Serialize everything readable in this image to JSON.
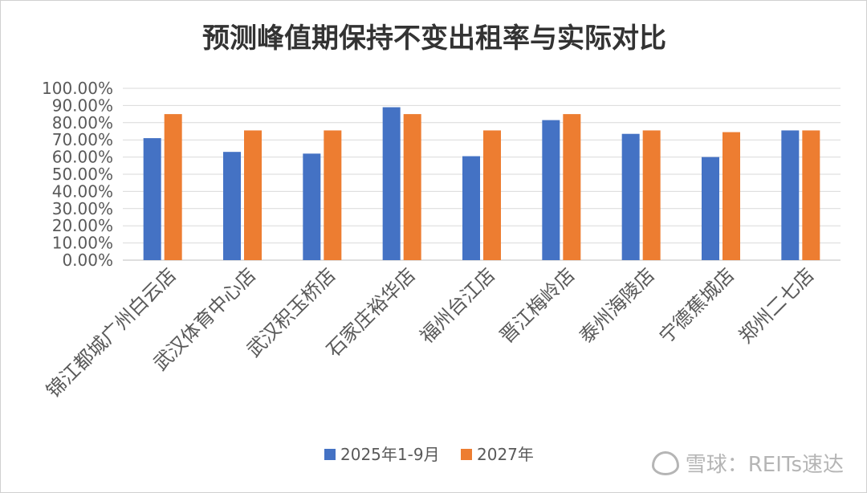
{
  "chart_data": {
    "type": "bar",
    "title": "预测峰值期保持不变出租率与实际对比",
    "categories": [
      "锦江都城广州白云店",
      "武汉体育中心店",
      "武汉积玉桥店",
      "石家庄裕华店",
      "福州台江店",
      "晋江梅岭店",
      "泰州海陵店",
      "宁德蕉城店",
      "郑州二七店"
    ],
    "series": [
      {
        "name": "2025年1-9月",
        "color": "#4472C4",
        "values": [
          71,
          63,
          62,
          89,
          60.5,
          81.5,
          73.5,
          60,
          75.5
        ]
      },
      {
        "name": "2027年",
        "color": "#ED7D31",
        "values": [
          85,
          75.5,
          75.5,
          85,
          75.5,
          85,
          75.5,
          74.5,
          75.5
        ]
      }
    ],
    "ylim": [
      0,
      100
    ],
    "yticks": [
      "100.00%",
      "90.00%",
      "80.00%",
      "70.00%",
      "60.00%",
      "50.00%",
      "40.00%",
      "30.00%",
      "20.00%",
      "10.00%",
      "0.00%"
    ],
    "grid": true,
    "legend_position": "bottom"
  },
  "watermark": {
    "text": "雪球：REITs速达",
    "icon": "snowball-logo-icon"
  }
}
